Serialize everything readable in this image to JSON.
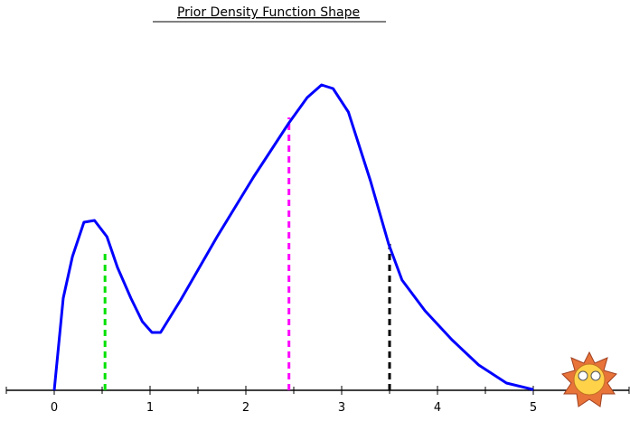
{
  "chart_data": {
    "type": "line",
    "title": "Prior Density Function Shape",
    "x": [
      0,
      0.094,
      0.19,
      0.31,
      0.42,
      0.55,
      0.66,
      0.8,
      0.92,
      1.02,
      1.11,
      1.32,
      1.7,
      2.08,
      2.45,
      2.64,
      2.79,
      2.91,
      3.07,
      3.3,
      3.49,
      3.63,
      3.87,
      4.15,
      4.43,
      4.72,
      5
    ],
    "series": [
      {
        "color": "#0000ff",
        "values": [
          0,
          25.5,
          37,
          46.5,
          47,
          42.5,
          34,
          25.5,
          19,
          16,
          16,
          25,
          42.5,
          59,
          74,
          81,
          84.5,
          83.5,
          77,
          58,
          40.5,
          30.5,
          22,
          14,
          7,
          2,
          0.2
        ]
      }
    ],
    "markers": [
      {
        "x": 0.53,
        "height": 39,
        "color": "#00e000"
      },
      {
        "x": 2.45,
        "height": 75.5,
        "color": "#ff00ff"
      },
      {
        "x": 3.5,
        "height": 40.5,
        "color": "#000000"
      }
    ],
    "xlim": [
      -0.5,
      6
    ],
    "ylim": [
      0,
      100
    ],
    "xticks": [
      0,
      1,
      2,
      3,
      4,
      5
    ],
    "minor_xticks": [
      -0.5,
      0.5,
      1.5,
      2.5,
      3.5,
      4.5,
      5.5,
      6
    ]
  }
}
